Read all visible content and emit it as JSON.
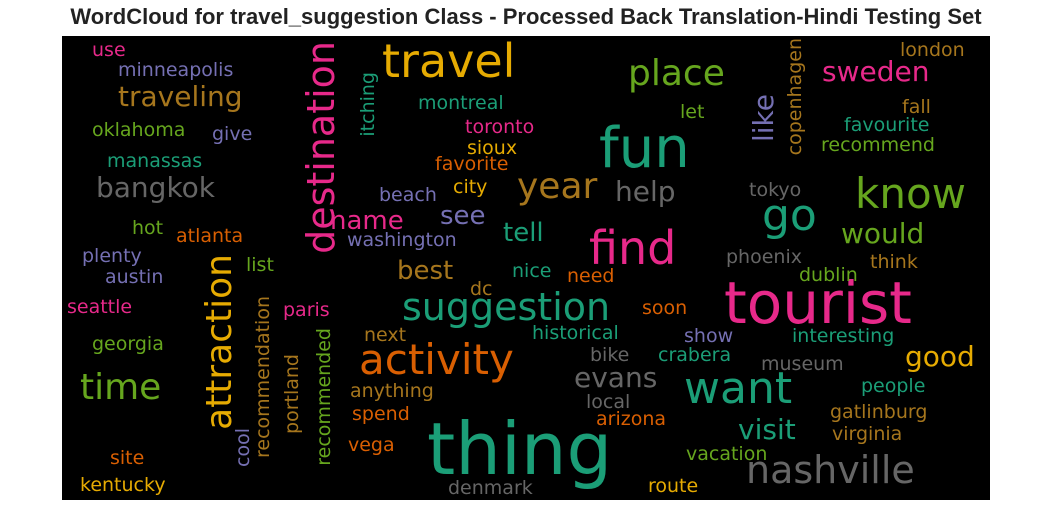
{
  "chart_data": {
    "type": "wordcloud",
    "title": "WordCloud for travel_suggestion Class - Processed Back Translation-Hindi Testing Set",
    "background": "#000000",
    "colormap": "Dark2",
    "words": [
      {
        "text": "tourist",
        "color": "#e7298a"
      },
      {
        "text": "thing",
        "color": "#1b9e77"
      },
      {
        "text": "fun",
        "color": "#1b9e77"
      },
      {
        "text": "travel",
        "color": "#e6ab02"
      },
      {
        "text": "attraction",
        "color": "#e6ab02"
      },
      {
        "text": "destination",
        "color": "#e7298a"
      },
      {
        "text": "know",
        "color": "#66a61e"
      },
      {
        "text": "find",
        "color": "#e7298a"
      },
      {
        "text": "nashville",
        "color": "#666666"
      },
      {
        "text": "activity",
        "color": "#d95f02"
      },
      {
        "text": "want",
        "color": "#1b9e77"
      },
      {
        "text": "go",
        "color": "#1b9e77"
      },
      {
        "text": "suggestion",
        "color": "#1b9e77"
      },
      {
        "text": "year",
        "color": "#a6761d"
      },
      {
        "text": "place",
        "color": "#66a61e"
      },
      {
        "text": "time",
        "color": "#66a61e"
      },
      {
        "text": "bangkok",
        "color": "#666666"
      },
      {
        "text": "traveling",
        "color": "#a6761d"
      },
      {
        "text": "sweden",
        "color": "#e7298a"
      },
      {
        "text": "like",
        "color": "#7570b3"
      },
      {
        "text": "help",
        "color": "#666666"
      },
      {
        "text": "evans",
        "color": "#666666"
      },
      {
        "text": "visit",
        "color": "#1b9e77"
      },
      {
        "text": "would",
        "color": "#66a61e"
      },
      {
        "text": "good",
        "color": "#e6ab02"
      },
      {
        "text": "name",
        "color": "#e7298a"
      },
      {
        "text": "see",
        "color": "#7570b3"
      },
      {
        "text": "tell",
        "color": "#1b9e77"
      },
      {
        "text": "best",
        "color": "#a6761d"
      },
      {
        "text": "copenhagen",
        "color": "#a6761d"
      },
      {
        "text": "itching",
        "color": "#1b9e77"
      },
      {
        "text": "recommendation",
        "color": "#a6761d"
      },
      {
        "text": "cool",
        "color": "#7570b3"
      },
      {
        "text": "portland",
        "color": "#a6761d"
      },
      {
        "text": "recommended",
        "color": "#66a61e"
      },
      {
        "text": "london",
        "color": "#a6761d"
      },
      {
        "text": "use",
        "color": "#e7298a"
      },
      {
        "text": "minneapolis",
        "color": "#7570b3"
      },
      {
        "text": "montreal",
        "color": "#1b9e77"
      },
      {
        "text": "let",
        "color": "#66a61e"
      },
      {
        "text": "fall",
        "color": "#a6761d"
      },
      {
        "text": "favourite",
        "color": "#1b9e77"
      },
      {
        "text": "recommend",
        "color": "#66a61e"
      },
      {
        "text": "toronto",
        "color": "#e7298a"
      },
      {
        "text": "oklahoma",
        "color": "#66a61e"
      },
      {
        "text": "give",
        "color": "#7570b3"
      },
      {
        "text": "sioux",
        "color": "#e6ab02"
      },
      {
        "text": "favorite",
        "color": "#d95f02"
      },
      {
        "text": "manassas",
        "color": "#1b9e77"
      },
      {
        "text": "city",
        "color": "#e6ab02"
      },
      {
        "text": "beach",
        "color": "#7570b3"
      },
      {
        "text": "tokyo",
        "color": "#666666"
      },
      {
        "text": "hot",
        "color": "#66a61e"
      },
      {
        "text": "atlanta",
        "color": "#d95f02"
      },
      {
        "text": "washington",
        "color": "#7570b3"
      },
      {
        "text": "plenty",
        "color": "#7570b3"
      },
      {
        "text": "austin",
        "color": "#7570b3"
      },
      {
        "text": "list",
        "color": "#66a61e"
      },
      {
        "text": "phoenix",
        "color": "#666666"
      },
      {
        "text": "dublin",
        "color": "#66a61e"
      },
      {
        "text": "think",
        "color": "#a6761d"
      },
      {
        "text": "nice",
        "color": "#1b9e77"
      },
      {
        "text": "need",
        "color": "#d95f02"
      },
      {
        "text": "dc",
        "color": "#a6761d"
      },
      {
        "text": "seattle",
        "color": "#e7298a"
      },
      {
        "text": "paris",
        "color": "#e7298a"
      },
      {
        "text": "soon",
        "color": "#d95f02"
      },
      {
        "text": "interesting",
        "color": "#1b9e77"
      },
      {
        "text": "next",
        "color": "#a6761d"
      },
      {
        "text": "historical",
        "color": "#1b9e77"
      },
      {
        "text": "show",
        "color": "#7570b3"
      },
      {
        "text": "georgia",
        "color": "#66a61e"
      },
      {
        "text": "bike",
        "color": "#666666"
      },
      {
        "text": "crabera",
        "color": "#1b9e77"
      },
      {
        "text": "museum",
        "color": "#666666"
      },
      {
        "text": "people",
        "color": "#1b9e77"
      },
      {
        "text": "anything",
        "color": "#a6761d"
      },
      {
        "text": "local",
        "color": "#666666"
      },
      {
        "text": "spend",
        "color": "#d95f02"
      },
      {
        "text": "gatlinburg",
        "color": "#a6761d"
      },
      {
        "text": "arizona",
        "color": "#d95f02"
      },
      {
        "text": "vega",
        "color": "#d95f02"
      },
      {
        "text": "virginia",
        "color": "#a6761d"
      },
      {
        "text": "site",
        "color": "#d95f02"
      },
      {
        "text": "vacation",
        "color": "#66a61e"
      },
      {
        "text": "kentucky",
        "color": "#e6ab02"
      },
      {
        "text": "denmark",
        "color": "#666666"
      },
      {
        "text": "route",
        "color": "#e6ab02"
      }
    ]
  }
}
